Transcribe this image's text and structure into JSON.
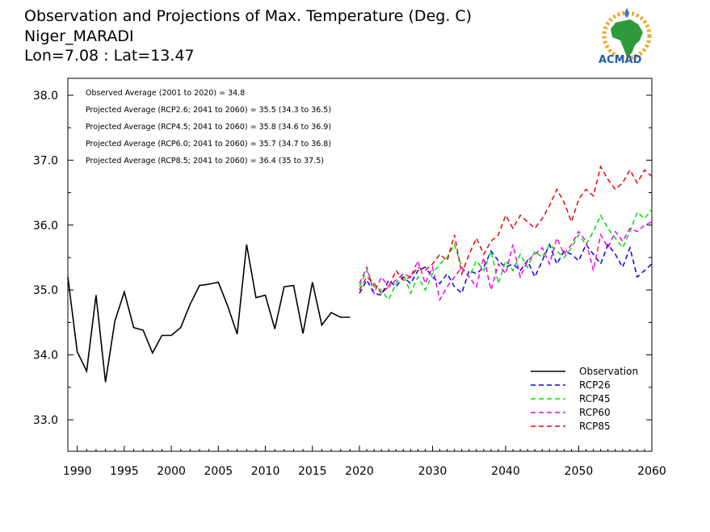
{
  "header": {
    "title": "Observation and Projections of Max. Temperature (Deg. C)",
    "location": "Niger_MARADI",
    "coords": "Lon=7.08 : Lat=13.47"
  },
  "logo": {
    "text": "ACMAD"
  },
  "annotations": [
    "Observed Average (2001 to 2020) = 34.8",
    "Projected Average (RCP2.6; 2041 to 2060) = 35.5 (34.3 to 36.5)",
    "Projected Average (RCP4.5; 2041 to 2060) = 35.8 (34.6 to 36.9)",
    "Projected Average (RCP6.0; 2041 to 2060) = 35.7 (34.7 to 36.8)",
    "Projected Average (RCP8.5; 2041 to 2060) = 36.4 (35 to 37.5)"
  ],
  "chart_data": {
    "type": "line",
    "title": "Observation and Projections of Max. Temperature (Deg. C)",
    "xlabel": "",
    "ylabel": "",
    "xlim": [
      1989,
      2060
    ],
    "ylim": [
      32.5,
      38.2
    ],
    "x_ticks_left": [
      1990,
      1995,
      2000,
      2005,
      2010,
      2015,
      2020
    ],
    "x_ticks_right": [
      2030,
      2040,
      2050,
      2060
    ],
    "y_ticks": [
      33.0,
      34.0,
      35.0,
      36.0,
      37.0,
      38.0
    ],
    "y_tick_labels": [
      "33.0",
      "34.0",
      "35.0",
      "36.0",
      "37.0",
      "38.0"
    ],
    "grid": false,
    "legend_position": "bottom-right",
    "series": [
      {
        "name": "Observation",
        "color": "#000000",
        "dashed": false,
        "x": [
          1989,
          1990,
          1991,
          1992,
          1993,
          1994,
          1995,
          1996,
          1997,
          1998,
          1999,
          2000,
          2001,
          2002,
          2003,
          2004,
          2005,
          2006,
          2007,
          2008,
          2009,
          2010,
          2011,
          2012,
          2013,
          2014,
          2015,
          2016,
          2017,
          2018,
          2019
        ],
        "y": [
          35.2,
          34.05,
          33.75,
          34.92,
          33.58,
          34.52,
          34.97,
          34.42,
          34.38,
          34.03,
          34.3,
          34.3,
          34.42,
          34.78,
          35.07,
          35.09,
          35.12,
          34.75,
          34.32,
          35.7,
          34.88,
          34.92,
          34.4,
          35.05,
          35.07,
          34.33,
          35.12,
          34.46,
          34.65,
          34.58,
          34.58
        ]
      },
      {
        "name": "RCP26",
        "color": "#0000ee",
        "dashed": true,
        "x": [
          2020,
          2021,
          2022,
          2023,
          2024,
          2025,
          2026,
          2027,
          2028,
          2029,
          2030,
          2031,
          2032,
          2033,
          2034,
          2035,
          2036,
          2037,
          2038,
          2039,
          2040,
          2041,
          2042,
          2043,
          2044,
          2045,
          2046,
          2047,
          2048,
          2049,
          2050,
          2051,
          2052,
          2053,
          2054,
          2055,
          2056,
          2057,
          2058,
          2059,
          2060
        ],
        "y": [
          34.95,
          35.15,
          34.95,
          34.92,
          35.15,
          35.05,
          35.2,
          35.1,
          35.3,
          35.35,
          35.2,
          35.1,
          35.25,
          35.05,
          34.95,
          35.3,
          35.25,
          35.35,
          35.6,
          35.45,
          35.35,
          35.4,
          35.3,
          35.45,
          35.2,
          35.45,
          35.7,
          35.4,
          35.6,
          35.55,
          35.45,
          35.7,
          35.55,
          35.4,
          35.7,
          35.55,
          35.35,
          35.65,
          35.2,
          35.3,
          35.4
        ]
      },
      {
        "name": "RCP45",
        "color": "#00e000",
        "dashed": true,
        "x": [
          2020,
          2021,
          2022,
          2023,
          2024,
          2025,
          2026,
          2027,
          2028,
          2029,
          2030,
          2031,
          2032,
          2033,
          2034,
          2035,
          2036,
          2037,
          2038,
          2039,
          2040,
          2041,
          2042,
          2043,
          2044,
          2045,
          2046,
          2047,
          2048,
          2049,
          2050,
          2051,
          2052,
          2053,
          2054,
          2055,
          2056,
          2057,
          2058,
          2059,
          2060
        ],
        "y": [
          35.05,
          35.3,
          35.05,
          35.0,
          34.85,
          35.1,
          35.25,
          34.95,
          35.2,
          35.0,
          35.25,
          35.4,
          35.5,
          35.7,
          35.35,
          35.2,
          35.45,
          35.3,
          35.6,
          35.1,
          35.45,
          35.3,
          35.55,
          35.35,
          35.6,
          35.5,
          35.7,
          35.6,
          35.5,
          35.65,
          35.85,
          35.7,
          35.9,
          36.15,
          35.95,
          35.8,
          35.65,
          35.9,
          36.2,
          36.1,
          36.25
        ]
      },
      {
        "name": "RCP60",
        "color": "#ee00ee",
        "dashed": true,
        "x": [
          2020,
          2021,
          2022,
          2023,
          2024,
          2025,
          2026,
          2027,
          2028,
          2029,
          2030,
          2031,
          2032,
          2033,
          2034,
          2035,
          2036,
          2037,
          2038,
          2039,
          2040,
          2041,
          2042,
          2043,
          2044,
          2045,
          2046,
          2047,
          2048,
          2049,
          2050,
          2051,
          2052,
          2053,
          2054,
          2055,
          2056,
          2057,
          2058,
          2059,
          2060
        ],
        "y": [
          35.1,
          35.35,
          34.95,
          35.2,
          35.05,
          35.15,
          35.25,
          35.2,
          35.45,
          35.1,
          35.35,
          34.85,
          35.05,
          35.2,
          35.35,
          35.2,
          35.05,
          35.5,
          35.0,
          35.4,
          35.25,
          35.7,
          35.2,
          35.45,
          35.55,
          35.65,
          35.4,
          35.8,
          35.55,
          35.7,
          35.9,
          35.75,
          35.3,
          35.85,
          35.65,
          35.9,
          35.75,
          35.95,
          35.9,
          36.0,
          36.05
        ]
      },
      {
        "name": "RCP85",
        "color": "#ee0000",
        "dashed": true,
        "x": [
          2020,
          2021,
          2022,
          2023,
          2024,
          2025,
          2026,
          2027,
          2028,
          2029,
          2030,
          2031,
          2032,
          2033,
          2034,
          2035,
          2036,
          2037,
          2038,
          2039,
          2040,
          2041,
          2042,
          2043,
          2044,
          2045,
          2046,
          2047,
          2048,
          2049,
          2050,
          2051,
          2052,
          2053,
          2054,
          2055,
          2056,
          2057,
          2058,
          2059,
          2060
        ],
        "y": [
          35.0,
          35.2,
          35.1,
          34.95,
          35.05,
          35.3,
          35.15,
          35.2,
          35.35,
          35.3,
          35.4,
          35.55,
          35.45,
          35.85,
          35.25,
          35.55,
          35.8,
          35.55,
          35.75,
          35.85,
          36.15,
          35.95,
          36.15,
          36.05,
          35.95,
          36.1,
          36.3,
          36.55,
          36.35,
          36.05,
          36.4,
          36.55,
          36.45,
          36.9,
          36.7,
          36.55,
          36.65,
          36.85,
          36.65,
          36.85,
          36.75
        ]
      }
    ]
  }
}
